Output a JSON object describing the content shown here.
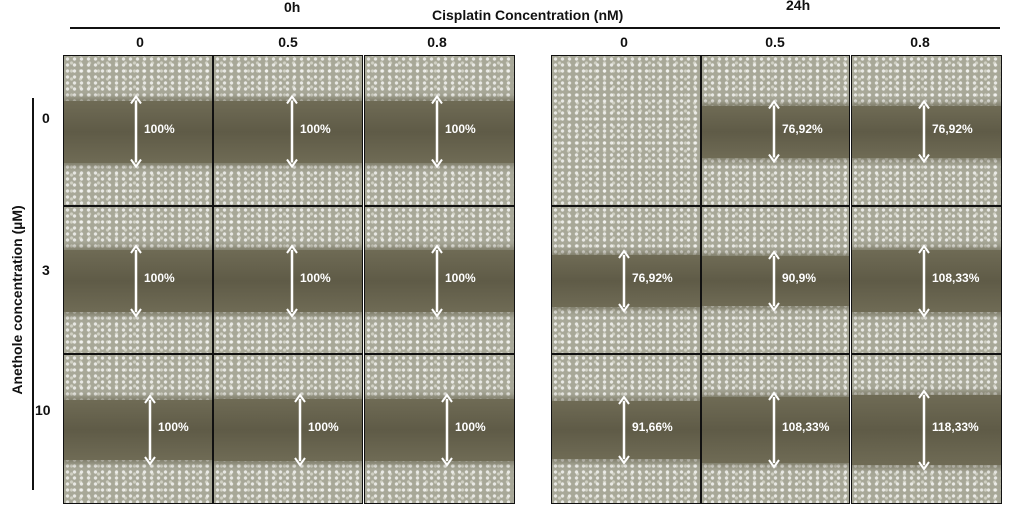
{
  "header": {
    "time_left": "0h",
    "title": "Cisplatin Concentration (nM)",
    "time_right": "24h"
  },
  "columns": [
    "0",
    "0.5",
    "0.8",
    "0",
    "0.5",
    "0.8"
  ],
  "y_axis_label": "Anethole concentration (µM)",
  "rows": [
    "0",
    "3",
    "10"
  ],
  "panels": [
    [
      "100%",
      "100%",
      "100%",
      "",
      "76,92%",
      "76,92%"
    ],
    [
      "100%",
      "100%",
      "100%",
      "76,92%",
      "90,9%",
      "108,33%"
    ],
    [
      "100%",
      "100%",
      "100%",
      "91,66%",
      "108,33%",
      "118,33%"
    ]
  ]
}
